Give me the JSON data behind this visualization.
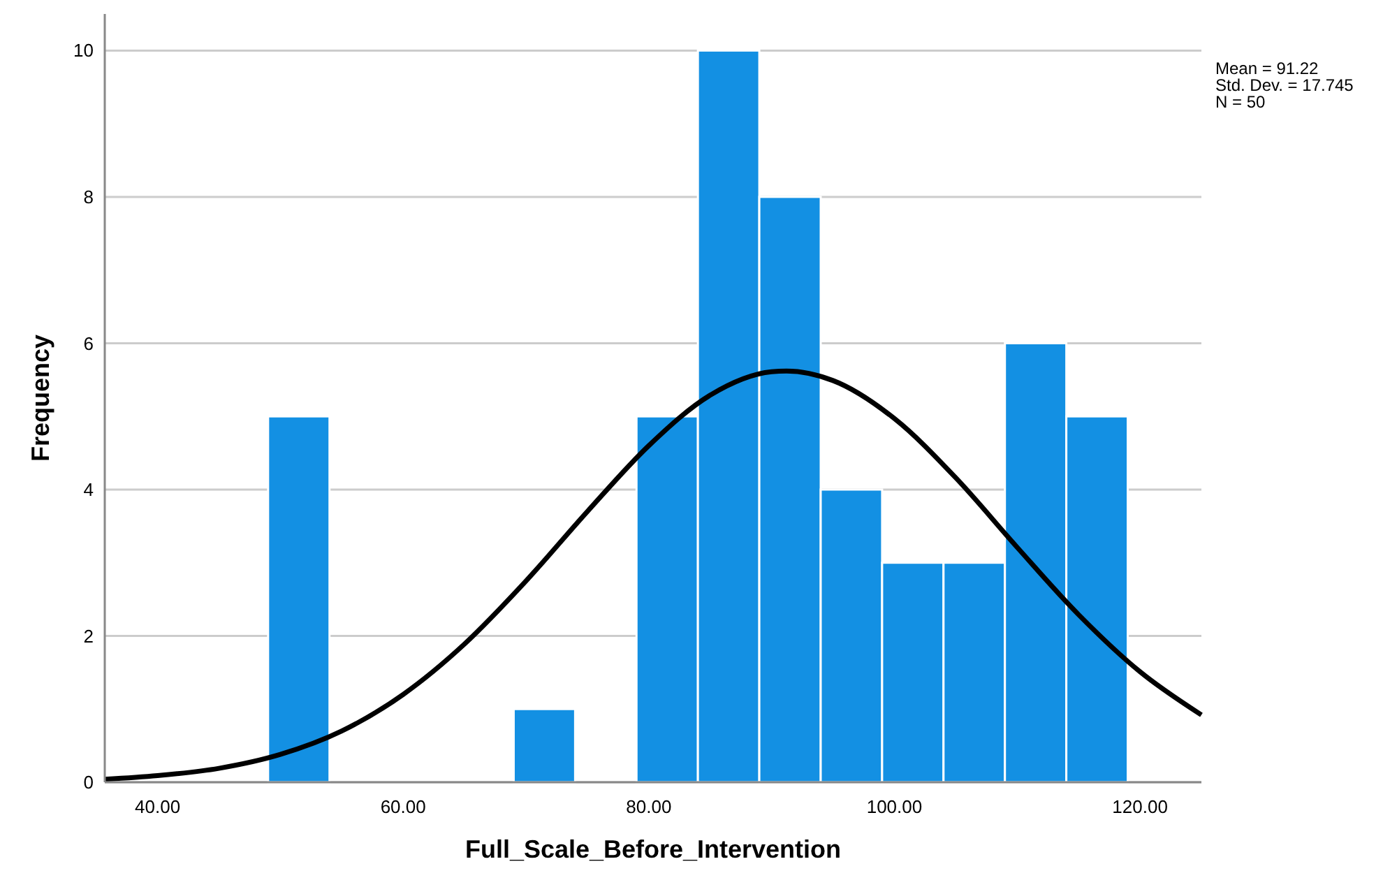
{
  "chart_data": {
    "type": "histogram",
    "xlabel": "Full_Scale_Before_Intervention",
    "ylabel": "Frequency",
    "annotations": [
      "Mean = 91.22",
      "Std. Dev. = 17.745",
      "N = 50"
    ],
    "xlim": [
      35.7,
      125
    ],
    "ylim": [
      0,
      10.5
    ],
    "xticks": [
      {
        "value": 40,
        "label": "40.00"
      },
      {
        "value": 60,
        "label": "60.00"
      },
      {
        "value": 80,
        "label": "80.00"
      },
      {
        "value": 100,
        "label": "100.00"
      },
      {
        "value": 120,
        "label": "120.00"
      }
    ],
    "yticks": [
      0,
      2,
      4,
      6,
      8,
      10
    ],
    "grid": "y",
    "legend": false,
    "series": [
      {
        "color": "#1390e3",
        "bins": [
          49,
          54,
          59,
          64,
          69,
          74,
          79,
          84,
          89,
          94,
          99,
          104,
          109,
          114,
          119
        ],
        "values": [
          5,
          0,
          0,
          0,
          1,
          0,
          5,
          10,
          8,
          4,
          3,
          3,
          6,
          5
        ]
      },
      {
        "type": "line",
        "color": "#000000",
        "marker": "none",
        "x": [
          35.7,
          40,
          45,
          50,
          55,
          60,
          65,
          70,
          75,
          80,
          85,
          90,
          91.22,
          95,
          100,
          105,
          110,
          115,
          120,
          125
        ],
        "values": [
          0.04,
          0.09,
          0.19,
          0.38,
          0.7,
          1.2,
          1.89,
          2.75,
          3.7,
          4.6,
          5.29,
          5.61,
          5.62,
          5.49,
          4.97,
          4.16,
          3.21,
          2.29,
          1.51,
          0.92
        ]
      }
    ]
  }
}
